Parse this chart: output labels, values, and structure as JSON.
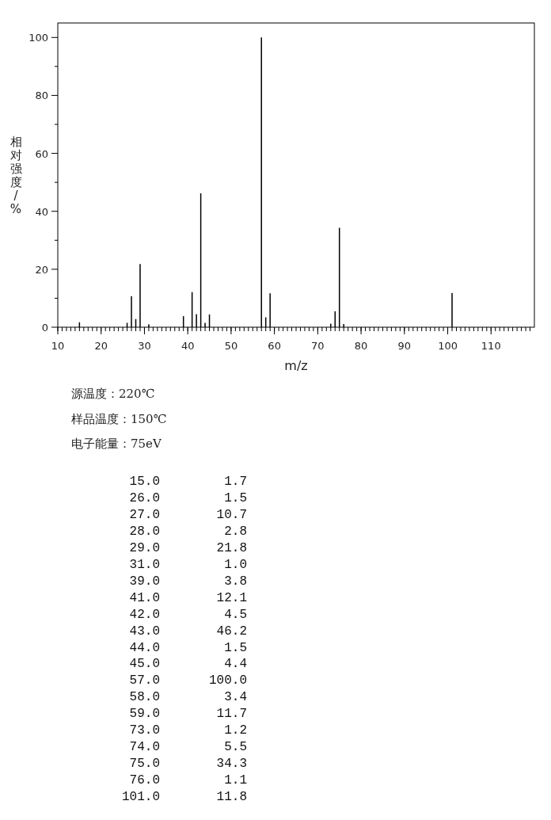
{
  "chart_data": [
    {
      "type": "bar",
      "xlabel": "m/z",
      "ylabel": "相对强度/%",
      "x": [
        15.0,
        26.0,
        27.0,
        28.0,
        29.0,
        31.0,
        39.0,
        41.0,
        42.0,
        43.0,
        44.0,
        45.0,
        57.0,
        58.0,
        59.0,
        73.0,
        74.0,
        75.0,
        76.0,
        101.0
      ],
      "values": [
        1.7,
        1.5,
        10.7,
        2.8,
        21.8,
        1.0,
        3.8,
        12.1,
        4.5,
        46.2,
        1.5,
        4.4,
        100.0,
        3.4,
        11.7,
        1.2,
        5.5,
        34.3,
        1.1,
        11.8
      ],
      "color": "#000000",
      "xlim": [
        10,
        120
      ],
      "xticks": [
        10,
        20,
        30,
        40,
        50,
        60,
        70,
        80,
        90,
        100,
        110
      ],
      "ylim": [
        0,
        105
      ],
      "yticks": [
        0,
        20,
        40,
        60,
        80,
        100
      ]
    },
    {
      "type": "other",
      "annotations": [
        "源温度：220℃",
        "样品温度：150℃",
        "电子能量：75eV"
      ]
    },
    {
      "type": "other",
      "annotations": [
        "15.0",
        "1.7",
        "26.0",
        "1.5",
        "27.0",
        "10.7",
        "28.0",
        "2.8",
        "29.0",
        "21.8",
        "31.0",
        "1.0",
        "39.0",
        "3.8",
        "41.0",
        "12.1",
        "42.0",
        "4.5",
        "43.0",
        "46.2",
        "44.0",
        "1.5",
        "45.0",
        "4.4",
        "57.0",
        "100.0",
        "58.0",
        "3.4",
        "59.0",
        "11.7",
        "73.0",
        "1.2",
        "74.0",
        "5.5",
        "75.0",
        "34.3",
        "76.0",
        "1.1",
        "101.0",
        "11.8"
      ]
    }
  ]
}
